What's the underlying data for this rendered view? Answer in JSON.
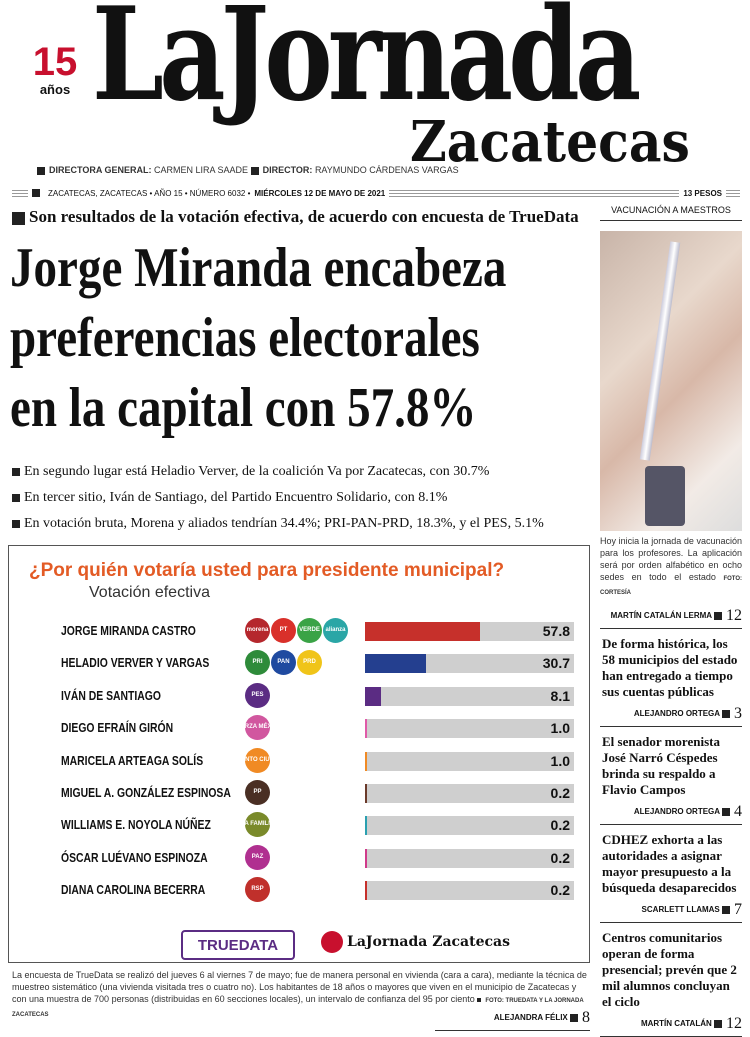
{
  "masthead": {
    "anniversary_number": "15",
    "anniversary_label": "años",
    "title": "LaJornada",
    "edition": "Zacatecas"
  },
  "staff": {
    "label1": "DIRECTORA GENERAL:",
    "name1": "CARMEN LIRA SAADE",
    "label2": "DIRECTOR:",
    "name2": "RAYMUNDO CÁRDENAS VARGAS"
  },
  "dateline": {
    "place": "ZACATECAS, ZACATECAS • AÑO 15 • NÚMERO 6032 •",
    "date": "MIÉRCOLES 12 DE MAYO DE 2021",
    "price": "13 PESOS"
  },
  "main": {
    "kicker": "Son resultados de la votación efectiva, de acuerdo con encuesta de TrueData",
    "headline": [
      "Jorge Miranda encabeza",
      "preferencias electorales",
      "en la capital con 57.8%"
    ],
    "bullets": [
      "En segundo lugar está Heladio Verver, de la coalición Va por Zacatecas, con 30.7%",
      "En tercer sitio, Iván de Santiago, del Partido Encuentro Solidario, con 8.1%",
      "En votación bruta, Morena y aliados tendrían 34.4%; PRI-PAN-PRD, 18.3%, y el PES, 5.1%"
    ],
    "footnote": "La encuesta de TrueData se realizó del jueves 6 al viernes 7 de mayo; fue de manera personal en vivienda (cara a cara), mediante la técnica de muestreo sistemático (una vivienda visitada tres o cuatro no). Los habitantes de 18 años o mayores que viven en el municipio de Zacatecas y con una muestra de 700 personas (distribuidas en 60 secciones locales), un intervalo de confianza del 95 por ciento",
    "photo_credit": "FOTO: TRUEDATA Y LA JORNADA ZACATECAS",
    "byline": "ALEJANDRA FÉLIX",
    "page": "8"
  },
  "chart_data": {
    "type": "bar",
    "orientation": "horizontal",
    "title": "¿Por quién votaría usted para presidente municipal?",
    "subtitle": "Votación efectiva",
    "categories": [
      "JORGE MIRANDA CASTRO",
      "HELADIO VERVER Y VARGAS",
      "IVÁN DE SANTIAGO",
      "DIEGO EFRAÍN GIRÓN",
      "MARICELA ARTEAGA SOLÍS",
      "MIGUEL A. GONZÁLEZ ESPINOSA",
      "WILLIAMS E. NOYOLA NÚÑEZ",
      "ÓSCAR LUÉVANO ESPINOZA",
      "DIANA CAROLINA BECERRA"
    ],
    "values": [
      57.8,
      30.7,
      8.1,
      1.0,
      1.0,
      0.2,
      0.2,
      0.2,
      0.2
    ],
    "value_labels": [
      "57.8",
      "30.7",
      "8.1",
      "1.0",
      "1.0",
      "0.2",
      "0.2",
      "0.2",
      "0.2"
    ],
    "colors": [
      "#c6302b",
      "#243f8f",
      "#5b2c83",
      "#e05aa8",
      "#f08a24",
      "#6b3a2a",
      "#2aa0b0",
      "#d03a8a",
      "#c6302b"
    ],
    "parties": [
      [
        "morena",
        "PT",
        "VERDE",
        "alianza"
      ],
      [
        "PRI",
        "PAN",
        "PRD"
      ],
      [
        "PES"
      ],
      [
        "FUERZA MÉXICO"
      ],
      [
        "MOVIMIENTO CIUDADANO"
      ],
      [
        "PP"
      ],
      [
        "LA FAMILIA"
      ],
      [
        "PAZ"
      ],
      [
        "RSP"
      ]
    ],
    "party_colors": [
      [
        "#b5272d",
        "#d9302a",
        "#3aa346",
        "#2aa6a6"
      ],
      [
        "#2e8b3a",
        "#1f4aa0",
        "#f0c419"
      ],
      [
        "#5b2c83"
      ],
      [
        "#d1579f"
      ],
      [
        "#f08a24"
      ],
      [
        "#4a2f24"
      ],
      [
        "#7a8a2a"
      ],
      [
        "#b03090"
      ],
      [
        "#c0302b"
      ]
    ],
    "xlim": [
      0,
      100
    ],
    "grid": false,
    "sources": [
      "TRUEDATA",
      "LaJornada Zacatecas"
    ]
  },
  "sidebar": {
    "section": "VACUNACIÓN A MAESTROS",
    "caption": "Hoy inicia la jornada de vacunación para los profesores. La aplicación será por orden alfabético en ocho sedes en todo el estado",
    "caption_credit": "FOTO: CORTESÍA",
    "caption_byline": "MARTÍN CATALÁN LERMA",
    "caption_page": "12",
    "stories": [
      {
        "title": "De forma histórica, los 58 municipios del estado han entregado a tiempo sus cuentas públicas",
        "byline": "ALEJANDRO ORTEGA",
        "page": "3"
      },
      {
        "title": "El senador morenista José Narró Céspedes brinda su respaldo a Flavio Campos",
        "byline": "ALEJANDRO ORTEGA",
        "page": "4"
      },
      {
        "title": "CDHEZ exhorta a las autoridades a asignar mayor presupuesto a la búsqueda desaparecidos",
        "byline": "SCARLETT LLAMAS",
        "page": "7"
      },
      {
        "title": "Centros comunitarios operan de forma presencial; prevén que 2 mil alumnos concluyan el ciclo",
        "byline": "MARTÍN CATALÁN",
        "page": "12"
      }
    ]
  }
}
